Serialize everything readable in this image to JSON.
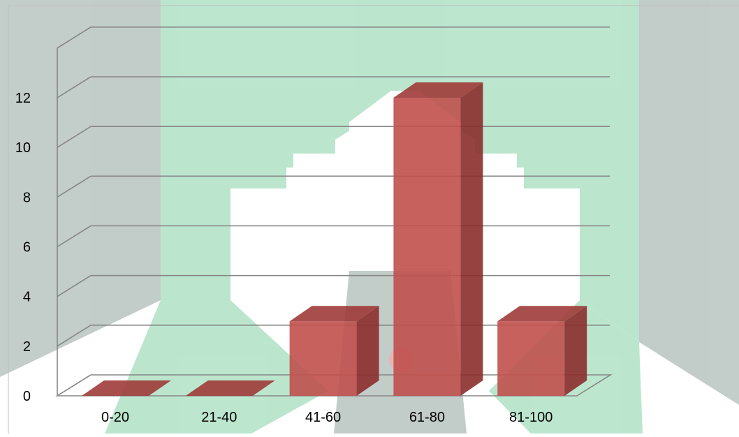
{
  "chart_data": {
    "type": "bar",
    "style": "3d-column",
    "categories": [
      "0-20",
      "21-40",
      "41-60",
      "61-80",
      "81-100"
    ],
    "values": [
      0,
      0,
      3,
      12,
      3
    ],
    "y_ticks": [
      "0",
      "2",
      "4",
      "6",
      "8",
      "10",
      "12"
    ],
    "ylim": [
      0,
      12
    ],
    "grid": true,
    "legend": "none",
    "colors": {
      "bar_front": "#c0504d",
      "bar_side": "#8b2e2c",
      "bar_top": "#9e3b39",
      "grid": "#868686",
      "watermark_green": "#5fc48a",
      "watermark_gray": "#6f8880",
      "axis_text": "#000000"
    },
    "watermark": "green-gray mosque emblem"
  }
}
